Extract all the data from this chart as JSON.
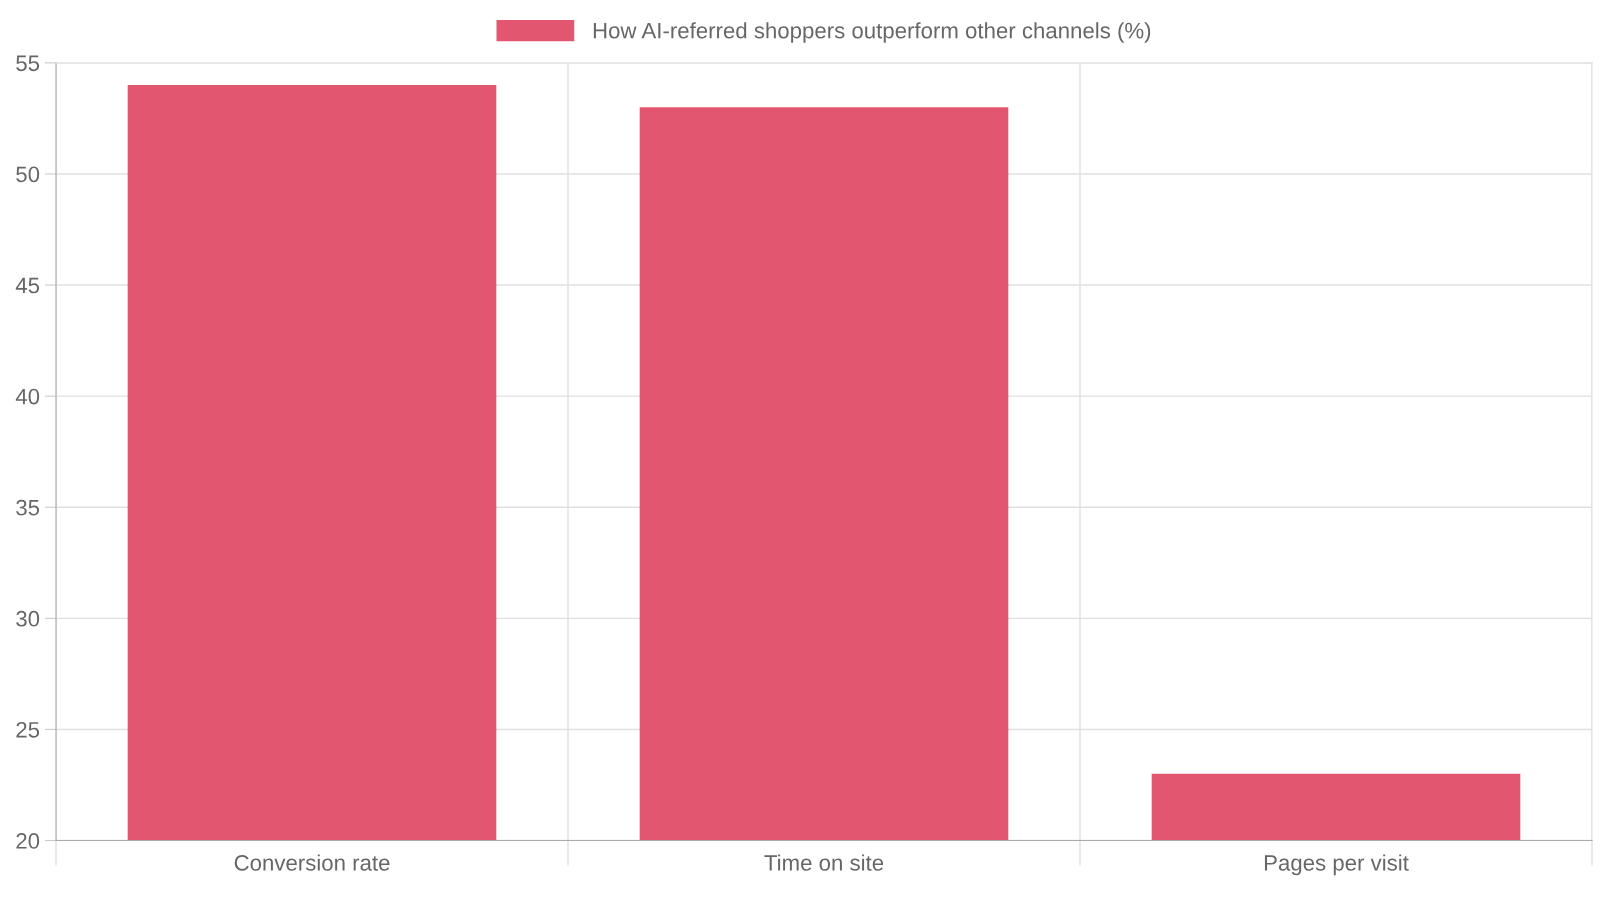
{
  "chart_data": {
    "type": "bar",
    "categories": [
      "Conversion rate",
      "Time on site",
      "Pages per visit"
    ],
    "series": [
      {
        "name": "How AI-referred shoppers outperform other channels (%)",
        "color": "#e2576f",
        "values": [
          54,
          53,
          23
        ]
      }
    ],
    "ylim": [
      20,
      55
    ],
    "yticks": [
      20,
      25,
      30,
      35,
      40,
      45,
      50,
      55
    ],
    "grid": true,
    "legend": "top"
  }
}
